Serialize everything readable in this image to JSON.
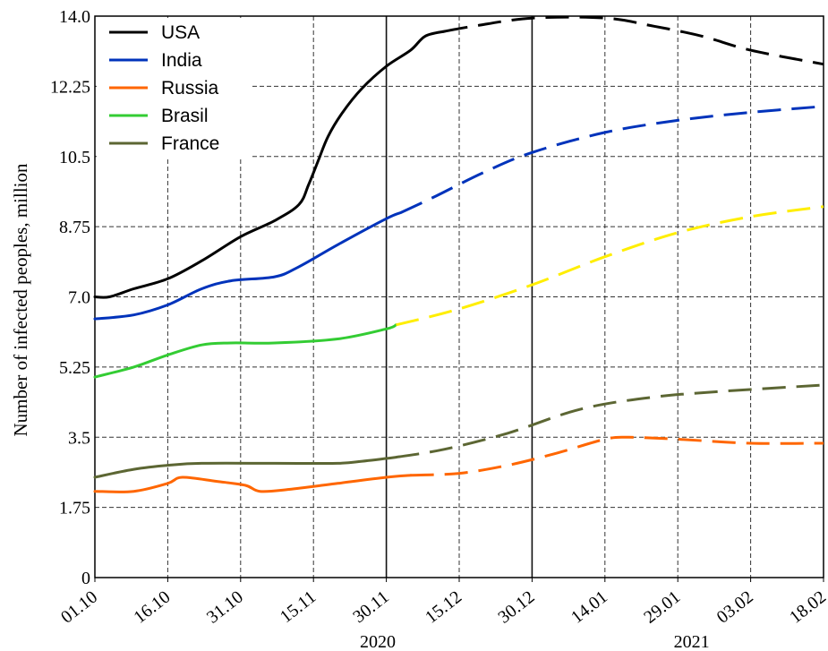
{
  "chart_data": {
    "type": "line",
    "title": "",
    "xlabel": "",
    "ylabel": "Number of infected peoples, million",
    "x_ticks": [
      "01.10",
      "16.10",
      "31.10",
      "15.11",
      "30.11",
      "15.12",
      "30.12",
      "14.01",
      "29.01",
      "03.02",
      "18.02"
    ],
    "year_labels": [
      "2020",
      "2021"
    ],
    "y_ticks": [
      "0",
      "1.75",
      "3.5",
      "5.25",
      "7.0",
      "8.75",
      "10.5",
      "12.25",
      "14.0"
    ],
    "ylim": [
      0,
      14.0
    ],
    "grid": true,
    "legend_position": "top-left",
    "series": [
      {
        "name": "USA",
        "color": "#000000",
        "observed": [
          [
            0,
            7.0
          ],
          [
            3,
            7.0
          ],
          [
            8,
            7.2
          ],
          [
            15,
            7.45
          ],
          [
            22,
            7.9
          ],
          [
            30,
            8.5
          ],
          [
            37,
            8.9
          ],
          [
            42,
            9.3
          ],
          [
            44,
            9.8
          ],
          [
            46,
            10.4
          ],
          [
            48,
            11.0
          ],
          [
            51,
            11.6
          ],
          [
            55,
            12.2
          ],
          [
            60,
            12.75
          ],
          [
            65,
            13.15
          ],
          [
            68,
            13.5
          ],
          [
            72,
            13.62
          ]
        ],
        "forecast": [
          [
            72,
            13.62
          ],
          [
            78,
            13.75
          ],
          [
            90,
            13.95
          ],
          [
            105,
            13.95
          ],
          [
            115,
            13.75
          ],
          [
            125,
            13.5
          ],
          [
            135,
            13.15
          ],
          [
            150,
            12.8
          ]
        ]
      },
      {
        "name": "India",
        "color": "#0033bb",
        "observed": [
          [
            0,
            6.45
          ],
          [
            8,
            6.55
          ],
          [
            15,
            6.8
          ],
          [
            22,
            7.2
          ],
          [
            28,
            7.4
          ],
          [
            37,
            7.5
          ],
          [
            42,
            7.75
          ],
          [
            50,
            8.3
          ],
          [
            60,
            8.95
          ],
          [
            63,
            9.1
          ]
        ],
        "forecast": [
          [
            63,
            9.1
          ],
          [
            70,
            9.5
          ],
          [
            80,
            10.1
          ],
          [
            90,
            10.6
          ],
          [
            105,
            11.1
          ],
          [
            120,
            11.4
          ],
          [
            135,
            11.6
          ],
          [
            150,
            11.75
          ]
        ]
      },
      {
        "name": "Russia",
        "color": "#ff6600",
        "observed": [
          [
            0,
            2.15
          ],
          [
            8,
            2.15
          ],
          [
            15,
            2.35
          ],
          [
            18,
            2.5
          ],
          [
            25,
            2.4
          ],
          [
            31,
            2.3
          ],
          [
            34,
            2.15
          ],
          [
            40,
            2.2
          ],
          [
            50,
            2.35
          ],
          [
            60,
            2.5
          ],
          [
            65,
            2.55
          ]
        ],
        "forecast": [
          [
            65,
            2.55
          ],
          [
            75,
            2.6
          ],
          [
            85,
            2.8
          ],
          [
            95,
            3.1
          ],
          [
            105,
            3.45
          ],
          [
            110,
            3.5
          ],
          [
            120,
            3.45
          ],
          [
            135,
            3.35
          ],
          [
            150,
            3.35
          ]
        ]
      },
      {
        "name": "Brasil",
        "color": "#33cc33",
        "observed": [
          [
            0,
            5.0
          ],
          [
            8,
            5.25
          ],
          [
            15,
            5.55
          ],
          [
            22,
            5.8
          ],
          [
            28,
            5.85
          ],
          [
            37,
            5.85
          ],
          [
            50,
            5.95
          ],
          [
            60,
            6.2
          ],
          [
            62,
            6.3
          ]
        ],
        "forecast": [
          [
            62,
            6.3
          ],
          [
            75,
            6.7
          ],
          [
            90,
            7.3
          ],
          [
            105,
            8.0
          ],
          [
            120,
            8.6
          ],
          [
            135,
            9.0
          ],
          [
            150,
            9.25
          ]
        ],
        "forecast_color": "#ffee00"
      },
      {
        "name": "France",
        "color": "#5c6633",
        "observed": [
          [
            0,
            2.5
          ],
          [
            8,
            2.7
          ],
          [
            15,
            2.8
          ],
          [
            22,
            2.85
          ],
          [
            37,
            2.85
          ],
          [
            50,
            2.85
          ],
          [
            55,
            2.9
          ],
          [
            62,
            3.0
          ]
        ],
        "forecast": [
          [
            62,
            3.0
          ],
          [
            72,
            3.2
          ],
          [
            85,
            3.6
          ],
          [
            100,
            4.2
          ],
          [
            115,
            4.5
          ],
          [
            130,
            4.65
          ],
          [
            150,
            4.8
          ]
        ]
      }
    ]
  }
}
